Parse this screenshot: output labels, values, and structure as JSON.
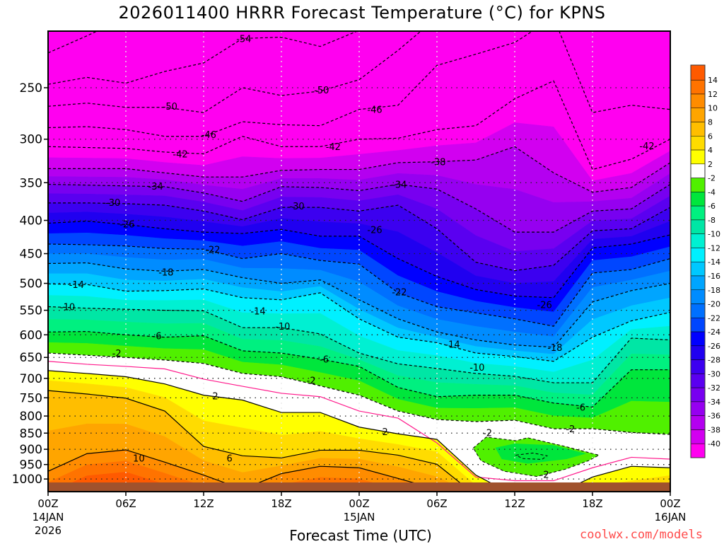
{
  "title": "2026011400 HRRR Forecast Temperature (°C) for KPNS",
  "watermark": "coolwx.com/models",
  "chart_data": {
    "type": "heatmap",
    "subtype": "time-pressure filled contour",
    "title": "2026011400 HRRR Forecast Temperature (°C) for KPNS",
    "xlabel": "Forecast Time (UTC)",
    "ylabel": "",
    "xlim_hours": [
      0,
      48
    ],
    "ylim_hpa": [
      1046,
      205
    ],
    "surface_hpa": 1013,
    "grid": true,
    "y_ticks": [
      250,
      300,
      350,
      400,
      450,
      500,
      550,
      600,
      650,
      700,
      750,
      800,
      850,
      900,
      950,
      1000
    ],
    "x_ticks": [
      {
        "hour": 0,
        "label": "00Z",
        "date": "14JAN",
        "year": "2026"
      },
      {
        "hour": 6,
        "label": "06Z"
      },
      {
        "hour": 12,
        "label": "12Z"
      },
      {
        "hour": 18,
        "label": "18Z"
      },
      {
        "hour": 24,
        "label": "00Z",
        "date": "15JAN"
      },
      {
        "hour": 30,
        "label": "06Z"
      },
      {
        "hour": 36,
        "label": "12Z"
      },
      {
        "hour": 42,
        "label": "18Z"
      },
      {
        "hour": 48,
        "label": "00Z",
        "date": "16JAN"
      }
    ],
    "times_hours": [
      0,
      3,
      6,
      9,
      12,
      15,
      18,
      21,
      24,
      27,
      30,
      33,
      36,
      39,
      42,
      45,
      48
    ],
    "isotherms": [
      {
        "level": -58,
        "pressure_hpa": [
          221,
          208,
          195,
          195,
          195,
          195,
          195,
          195,
          195,
          195,
          195,
          195,
          195,
          195,
          195,
          195,
          195
        ]
      },
      {
        "level": -54,
        "pressure_hpa": [
          247,
          241,
          246,
          236,
          229,
          210,
          209,
          216,
          204,
          195,
          195,
          195,
          195,
          195,
          195,
          195,
          195
        ]
      },
      {
        "level": -50,
        "pressure_hpa": [
          267,
          264,
          268,
          268,
          273,
          250,
          257,
          253,
          243,
          219,
          195,
          195,
          195,
          195,
          195,
          195,
          195
        ]
      },
      {
        "level": -46,
        "pressure_hpa": [
          288,
          287,
          290,
          297,
          297,
          282,
          285,
          286,
          270,
          266,
          231,
          222,
          213,
          195,
          273,
          266,
          270
        ]
      },
      {
        "level": -42,
        "pressure_hpa": [
          308,
          309,
          310,
          314,
          316,
          297,
          308,
          308,
          300,
          299,
          290,
          286,
          260,
          244,
          334,
          322,
          300
        ]
      },
      {
        "level": -38,
        "pressure_hpa": [
          333,
          333,
          333,
          338,
          343,
          343,
          335,
          334,
          334,
          326,
          325,
          323,
          308,
          338,
          362,
          356,
          326
        ]
      },
      {
        "level": -34,
        "pressure_hpa": [
          352,
          353,
          354,
          355,
          363,
          374,
          355,
          356,
          360,
          352,
          358,
          384,
          417,
          417,
          387,
          384,
          352
        ]
      },
      {
        "level": -30,
        "pressure_hpa": [
          376,
          376,
          377,
          379,
          387,
          399,
          382,
          382,
          387,
          379,
          412,
          464,
          478,
          469,
          415,
          412,
          382
        ]
      },
      {
        "level": -26,
        "pressure_hpa": [
          404,
          401,
          406,
          412,
          417,
          419,
          413,
          423,
          423,
          458,
          488,
          511,
          523,
          526,
          441,
          435,
          421
        ]
      },
      {
        "level": -22,
        "pressure_hpa": [
          435,
          436,
          438,
          442,
          443,
          458,
          450,
          461,
          467,
          517,
          543,
          555,
          567,
          582,
          482,
          476,
          458
        ]
      },
      {
        "level": -18,
        "pressure_hpa": [
          466,
          465,
          475,
          479,
          476,
          490,
          500,
          494,
          530,
          567,
          594,
          611,
          622,
          627,
          534,
          513,
          500
        ]
      },
      {
        "level": -14,
        "pressure_hpa": [
          501,
          502,
          514,
          513,
          510,
          526,
          530,
          517,
          567,
          605,
          617,
          640,
          648,
          659,
          605,
          571,
          554
        ]
      },
      {
        "level": -10,
        "pressure_hpa": [
          543,
          546,
          548,
          550,
          551,
          585,
          585,
          598,
          640,
          665,
          676,
          688,
          695,
          711,
          711,
          607,
          611
        ]
      },
      {
        "level": -6,
        "pressure_hpa": [
          594,
          593,
          600,
          605,
          602,
          635,
          640,
          654,
          671,
          723,
          747,
          743,
          743,
          764,
          775,
          679,
          679
        ]
      },
      {
        "level": -2,
        "pressure_hpa": [
          640,
          645,
          650,
          656,
          664,
          688,
          696,
          719,
          743,
          786,
          810,
          816,
          812,
          837,
          837,
          848,
          854
        ]
      },
      {
        "level": 0,
        "pressure_hpa": [
          659,
          666,
          671,
          677,
          702,
          720,
          738,
          747,
          786,
          806,
          880,
          993,
          1006,
          1006,
          961,
          926,
          932
        ]
      },
      {
        "level": 2,
        "pressure_hpa": [
          681,
          688,
          696,
          714,
          743,
          756,
          790,
          790,
          832,
          852,
          869,
          986,
          1060,
          1060,
          993,
          956,
          961
        ]
      },
      {
        "level": 6,
        "pressure_hpa": [
          731,
          740,
          751,
          786,
          891,
          921,
          928,
          903,
          903,
          919,
          949,
          1060,
          1060,
          1060,
          1060,
          1060,
          1015
        ]
      },
      {
        "level": 10,
        "pressure_hpa": [
          973,
          914,
          902,
          942,
          986,
          1037,
          981,
          956,
          961,
          998,
          1037,
          1060,
          1060,
          1060,
          1060,
          1060,
          1060
        ]
      }
    ],
    "closed_regions": [
      {
        "level": -2,
        "fill_band": "-4..-2",
        "points": [
          [
            32.8,
            896
          ],
          [
            33.8,
            862
          ],
          [
            36.1,
            873
          ],
          [
            37.0,
            864
          ],
          [
            39.9,
            891
          ],
          [
            42.5,
            919
          ],
          [
            41.7,
            937
          ],
          [
            39.9,
            966
          ],
          [
            37.7,
            991
          ],
          [
            35.2,
            973
          ],
          [
            33.4,
            937
          ]
        ]
      },
      {
        "level": -4,
        "fill_band": "-6..-4",
        "points": [
          [
            34.5,
            895
          ],
          [
            36.0,
            882
          ],
          [
            39.0,
            887
          ],
          [
            41.5,
            914
          ],
          [
            40.0,
            932
          ],
          [
            37.0,
            947
          ],
          [
            35.0,
            932
          ]
        ]
      },
      {
        "level": -6,
        "fill_band": "",
        "points": [
          [
            36.1,
            919
          ],
          [
            37.4,
            912
          ],
          [
            38.5,
            921
          ],
          [
            38.1,
            933
          ],
          [
            36.6,
            930
          ]
        ]
      }
    ],
    "contour_labels": [
      {
        "text": "-54",
        "t": 15.1,
        "p": 210
      },
      {
        "text": "-50",
        "t": 9.4,
        "p": 267
      },
      {
        "text": "-50",
        "t": 21.1,
        "p": 252
      },
      {
        "text": "-46",
        "t": 12.4,
        "p": 295
      },
      {
        "text": "-46",
        "t": 25.2,
        "p": 270
      },
      {
        "text": "-42",
        "t": 10.2,
        "p": 316
      },
      {
        "text": "-42",
        "t": 22.0,
        "p": 308
      },
      {
        "text": "-42",
        "t": 46.2,
        "p": 307
      },
      {
        "text": "-38",
        "t": 30.1,
        "p": 325
      },
      {
        "text": "-34",
        "t": 8.3,
        "p": 354
      },
      {
        "text": "-34",
        "t": 27.1,
        "p": 352
      },
      {
        "text": "-30",
        "t": 5.0,
        "p": 375
      },
      {
        "text": "-30",
        "t": 19.2,
        "p": 380
      },
      {
        "text": "-26",
        "t": 6.1,
        "p": 405
      },
      {
        "text": "-26",
        "t": 25.2,
        "p": 413
      },
      {
        "text": "-26",
        "t": 38.3,
        "p": 539
      },
      {
        "text": "-22",
        "t": 12.7,
        "p": 443
      },
      {
        "text": "-22",
        "t": 27.1,
        "p": 515
      },
      {
        "text": "-18",
        "t": 9.1,
        "p": 480
      },
      {
        "text": "-18",
        "t": 39.1,
        "p": 627
      },
      {
        "text": "-14",
        "t": 2.2,
        "p": 502
      },
      {
        "text": "-14",
        "t": 16.2,
        "p": 551
      },
      {
        "text": "-14",
        "t": 31.2,
        "p": 620
      },
      {
        "text": "-10",
        "t": 1.5,
        "p": 543
      },
      {
        "text": "-10",
        "t": 18.1,
        "p": 582
      },
      {
        "text": "-10",
        "t": 33.1,
        "p": 673
      },
      {
        "text": "-6",
        "t": 8.4,
        "p": 602
      },
      {
        "text": "-6",
        "t": 21.3,
        "p": 654
      },
      {
        "text": "-6",
        "t": 41.1,
        "p": 775
      },
      {
        "text": "-2",
        "t": 5.3,
        "p": 640
      },
      {
        "text": "-2",
        "t": 20.3,
        "p": 705
      },
      {
        "text": "-2",
        "t": 40.3,
        "p": 837
      },
      {
        "text": "-2",
        "t": 33.9,
        "p": 848
      },
      {
        "text": "-2",
        "t": 38.3,
        "p": 984
      },
      {
        "text": "2",
        "t": 12.9,
        "p": 745
      },
      {
        "text": "2",
        "t": 26.0,
        "p": 845
      },
      {
        "text": "6",
        "t": 14.0,
        "p": 928
      },
      {
        "text": "10",
        "t": 7.0,
        "p": 928
      }
    ],
    "colorbar": {
      "labels": [
        "14",
        "12",
        "10",
        "8",
        "6",
        "4",
        "2",
        "-2",
        "-4",
        "-6",
        "-8",
        "-10",
        "-12",
        "-14",
        "-16",
        "-18",
        "-20",
        "-22",
        "-24",
        "-26",
        "-28",
        "-30",
        "-32",
        "-34",
        "-36",
        "-38",
        "-40"
      ],
      "bands": [
        {
          "range": ">14",
          "color": "#ff5a00"
        },
        {
          "range": "12..14",
          "color": "#ff7300"
        },
        {
          "range": "10..12",
          "color": "#ff8c00"
        },
        {
          "range": "8..10",
          "color": "#ffa500"
        },
        {
          "range": "6..8",
          "color": "#ffbe00"
        },
        {
          "range": "4..6",
          "color": "#ffdc00"
        },
        {
          "range": "2..4",
          "color": "#ffff00"
        },
        {
          "range": "-2..2",
          "color": "#ffffff"
        },
        {
          "range": "-4..-2",
          "color": "#50f000"
        },
        {
          "range": "-6..-4",
          "color": "#00e63c"
        },
        {
          "range": "-8..-6",
          "color": "#00f080"
        },
        {
          "range": "-10..-8",
          "color": "#00e6a5"
        },
        {
          "range": "-12..-10",
          "color": "#00f0d2"
        },
        {
          "range": "-14..-12",
          "color": "#00f0ff"
        },
        {
          "range": "-16..-14",
          "color": "#00c8ff"
        },
        {
          "range": "-18..-16",
          "color": "#00a5ff"
        },
        {
          "range": "-20..-18",
          "color": "#008cff"
        },
        {
          "range": "-22..-20",
          "color": "#0070ff"
        },
        {
          "range": "-24..-22",
          "color": "#0046ff"
        },
        {
          "range": "-26..-24",
          "color": "#0000ff"
        },
        {
          "range": "-28..-26",
          "color": "#2000f0"
        },
        {
          "range": "-30..-28",
          "color": "#3c00f0"
        },
        {
          "range": "-32..-30",
          "color": "#5a00f0"
        },
        {
          "range": "-34..-32",
          "color": "#7800f0"
        },
        {
          "range": "-36..-34",
          "color": "#9600f0"
        },
        {
          "range": "-38..-36",
          "color": "#b400f0"
        },
        {
          "range": "-40..-38",
          "color": "#d200f0"
        },
        {
          "range": "<-40",
          "color": "#ff00f0"
        }
      ],
      "boundaries": [
        14,
        12,
        10,
        8,
        6,
        4,
        2,
        -2,
        -4,
        -6,
        -8,
        -10,
        -12,
        -14,
        -16,
        -18,
        -20,
        -22,
        -24,
        -26,
        -28,
        -30,
        -32,
        -34,
        -36,
        -38,
        -40
      ]
    },
    "colors": {
      "ground": "#a0522d",
      "freezing_line": "#ff1a8c",
      "watermark": "#ff4a4a"
    }
  }
}
